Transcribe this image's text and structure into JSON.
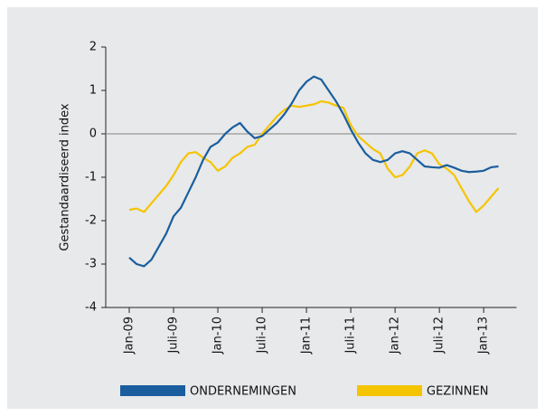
{
  "chart_data": {
    "type": "line",
    "y_label": "Gestandaardiseerd index",
    "categories": [
      "Jan-09",
      null,
      null,
      null,
      null,
      null,
      "Juli-09",
      null,
      null,
      null,
      null,
      null,
      "Jan-10",
      null,
      null,
      null,
      null,
      null,
      "Juli-10",
      null,
      null,
      null,
      null,
      null,
      "Jan-11",
      null,
      null,
      null,
      null,
      null,
      "Juli-11",
      null,
      null,
      null,
      null,
      null,
      "Jan-12",
      null,
      null,
      null,
      null,
      null,
      "Juli-12",
      null,
      null,
      null,
      null,
      null,
      "Jan-13",
      null,
      null
    ],
    "series": [
      {
        "name": "ONDERNEMINGEN",
        "color": "#1a5e9e",
        "values": [
          -2.85,
          -3.0,
          -3.05,
          -2.9,
          -2.6,
          -2.3,
          -1.9,
          -1.7,
          -1.35,
          -1.0,
          -0.6,
          -0.3,
          -0.2,
          0.0,
          0.15,
          0.25,
          0.05,
          -0.1,
          -0.05,
          0.1,
          0.25,
          0.45,
          0.7,
          1.0,
          1.2,
          1.32,
          1.25,
          1.0,
          0.75,
          0.45,
          0.1,
          -0.2,
          -0.45,
          -0.6,
          -0.65,
          -0.6,
          -0.45,
          -0.4,
          -0.45,
          -0.6,
          -0.75,
          -0.77,
          -0.78,
          -0.72,
          -0.78,
          -0.85,
          -0.88,
          -0.87,
          -0.85,
          -0.77,
          -0.75
        ]
      },
      {
        "name": "GEZINNEN",
        "color": "#f5c400",
        "values": [
          -1.75,
          -1.72,
          -1.8,
          -1.6,
          -1.4,
          -1.2,
          -0.95,
          -0.65,
          -0.45,
          -0.42,
          -0.55,
          -0.65,
          -0.85,
          -0.75,
          -0.55,
          -0.45,
          -0.3,
          -0.25,
          0.0,
          0.2,
          0.4,
          0.55,
          0.65,
          0.62,
          0.65,
          0.68,
          0.75,
          0.72,
          0.65,
          0.6,
          0.2,
          -0.05,
          -0.2,
          -0.35,
          -0.45,
          -0.8,
          -1.0,
          -0.95,
          -0.75,
          -0.45,
          -0.38,
          -0.45,
          -0.7,
          -0.8,
          -0.95,
          -1.25,
          -1.55,
          -1.8,
          -1.65,
          -1.45,
          -1.25
        ]
      }
    ],
    "ylim": [
      -4,
      2
    ],
    "yticks": [
      -4,
      -3,
      -2,
      -1,
      0,
      1,
      2
    ]
  }
}
